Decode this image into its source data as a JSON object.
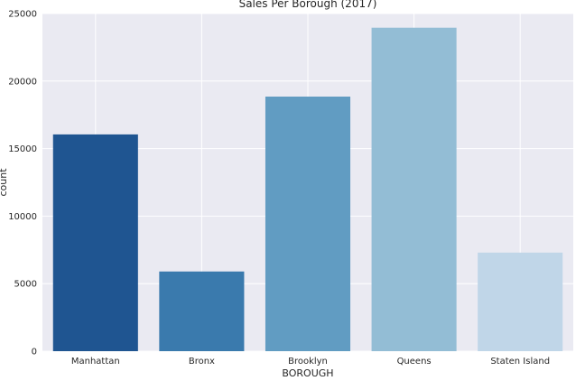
{
  "chart_data": {
    "type": "bar",
    "title": "Sales Per Borough (2017)",
    "xlabel": "BOROUGH",
    "ylabel": "count",
    "categories": [
      "Manhattan",
      "Bronx",
      "Brooklyn",
      "Queens",
      "Staten Island"
    ],
    "values": [
      16050,
      5900,
      18850,
      23950,
      7300
    ],
    "colors": [
      "#1f5591",
      "#3a7aad",
      "#619cc2",
      "#93bdd5",
      "#c0d6e8"
    ],
    "ylim": [
      0,
      25000
    ],
    "yticks": [
      0,
      5000,
      10000,
      15000,
      20000,
      25000
    ],
    "grid": true,
    "plot_background": "#eaeaf2",
    "grid_color": "#ffffff"
  }
}
